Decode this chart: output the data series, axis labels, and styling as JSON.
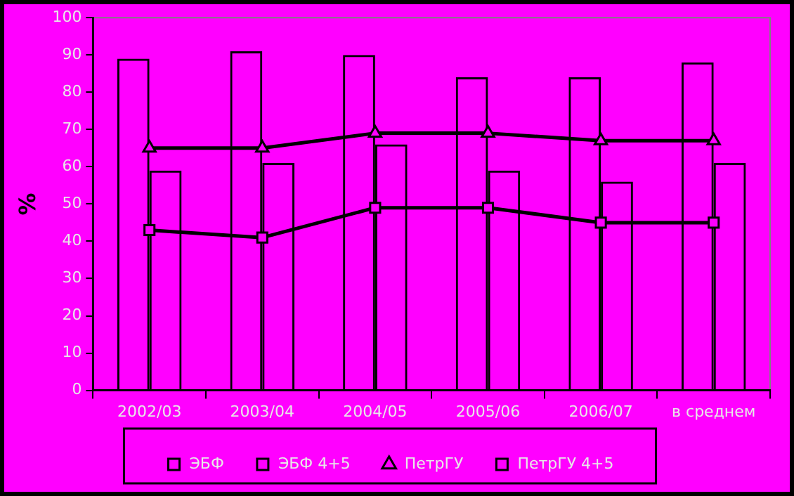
{
  "chart_data": {
    "type": "bar",
    "ylabel": "%",
    "categories": [
      "2002/03",
      "2003/04",
      "2004/05",
      "2005/06",
      "2006/07",
      "в среднем"
    ],
    "series": [
      {
        "name": "ЭБФ",
        "type": "bar",
        "color": "#000000",
        "values": [
          89,
          91,
          90,
          84,
          84,
          88
        ]
      },
      {
        "name": "ЭБФ 4+5",
        "type": "bar",
        "color": "#000000",
        "values": [
          59,
          61,
          66,
          59,
          56,
          61
        ]
      },
      {
        "name": "ПетрГУ",
        "type": "line",
        "color": "#000000",
        "marker": "triangle",
        "values": [
          65,
          65,
          69,
          69,
          67,
          67
        ]
      },
      {
        "name": "ПетрГУ 4+5",
        "type": "line",
        "color": "#000000",
        "marker": "square",
        "values": [
          43,
          41,
          49,
          49,
          45,
          45
        ]
      }
    ],
    "ylim": [
      0,
      100
    ],
    "yticks": [
      0,
      10,
      20,
      30,
      40,
      50,
      60,
      70,
      80,
      90,
      100
    ],
    "grid": false,
    "legend": "bottom"
  }
}
